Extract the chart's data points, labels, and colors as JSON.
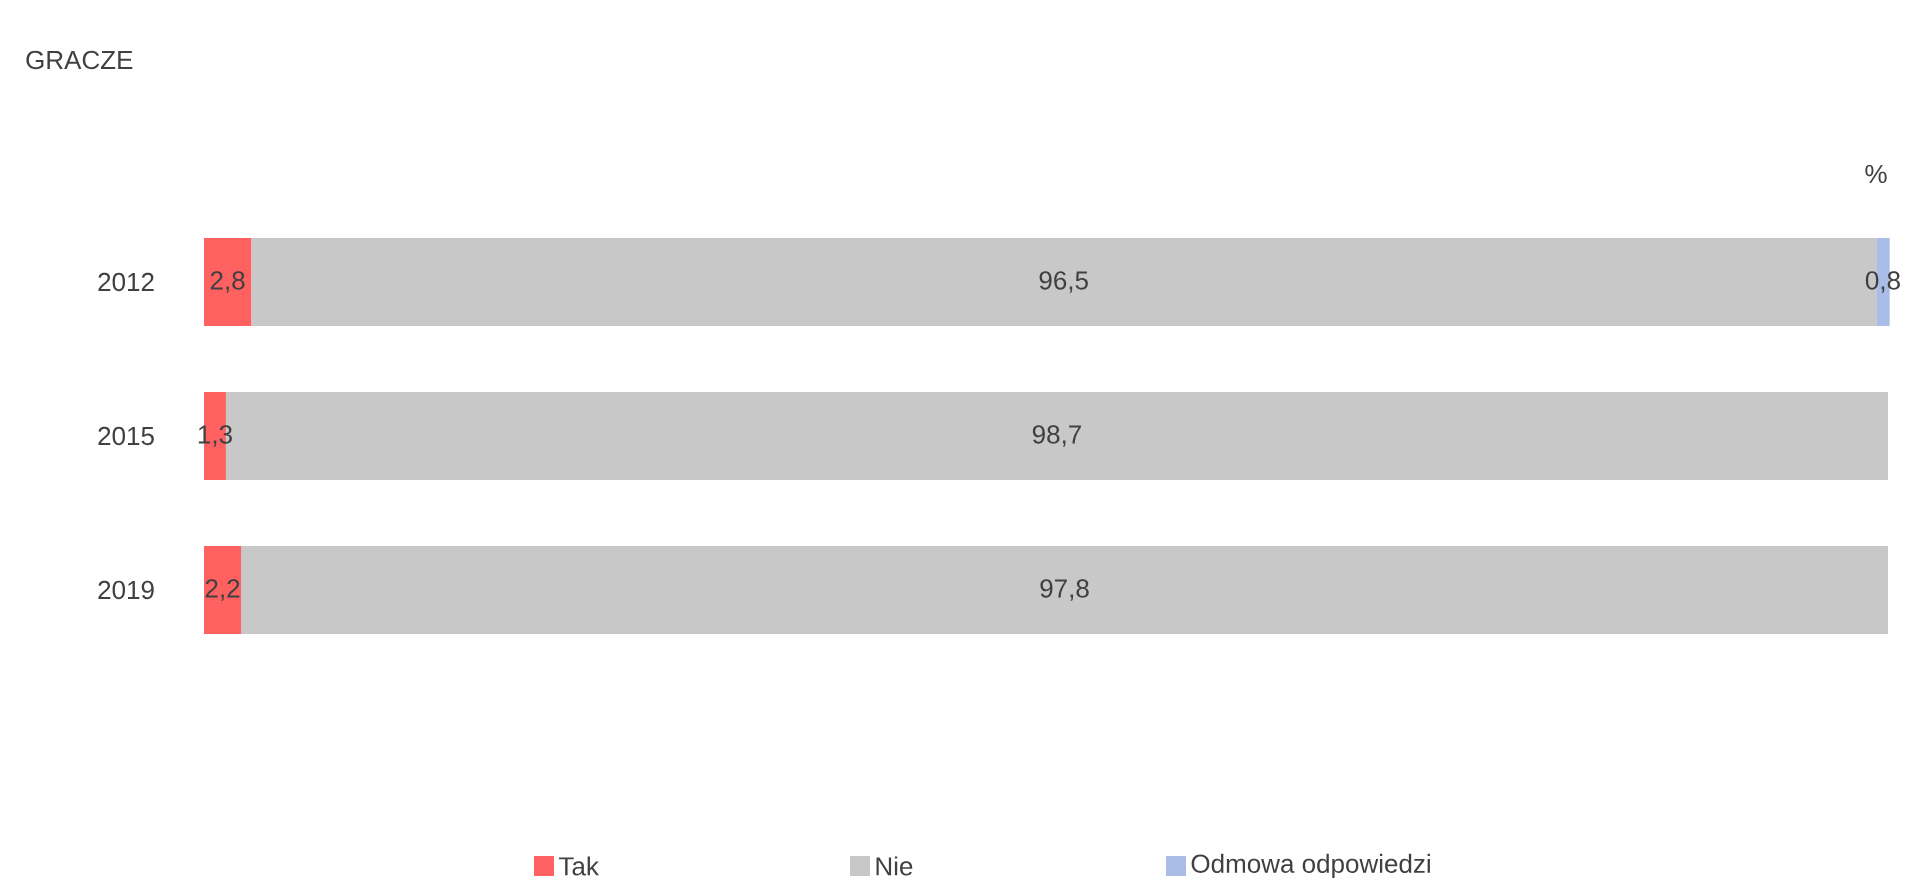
{
  "chart_data": {
    "type": "bar",
    "orientation": "horizontal",
    "stacked": true,
    "title": "GRACZE",
    "annotations": [
      "%"
    ],
    "categories": [
      "2012",
      "2015",
      "2019"
    ],
    "series": [
      {
        "name": "Tak",
        "color": "#ff6161",
        "values": [
          2.8,
          1.3,
          2.2
        ],
        "value_labels": [
          "2,8",
          "1,3",
          "2,2"
        ]
      },
      {
        "name": "Nie",
        "color": "#c8c8c8",
        "values": [
          96.5,
          98.7,
          97.8
        ],
        "value_labels": [
          "96,5",
          "98,7",
          "97,8"
        ]
      },
      {
        "name": "Odmowa odpowiedzi",
        "color": "#a9bde6",
        "values": [
          0.8,
          null,
          null
        ],
        "value_labels": [
          "0,8",
          null,
          null
        ]
      }
    ],
    "xlim": [
      0,
      100
    ],
    "tick_labels": "y",
    "legend": "bottom"
  }
}
